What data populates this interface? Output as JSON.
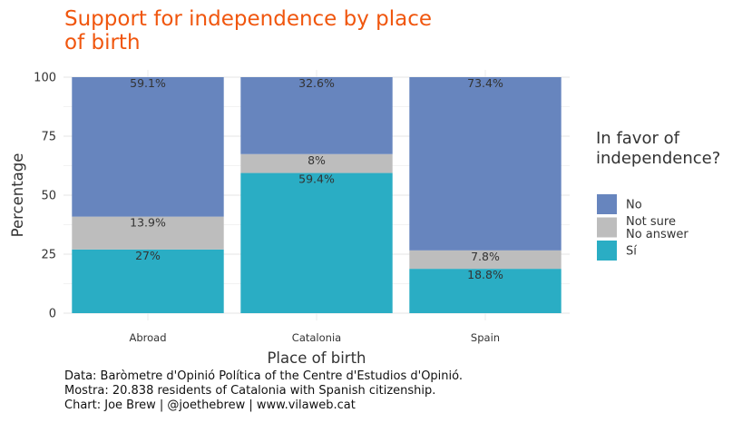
{
  "title": "Support for independence by place of birth",
  "chart_data": {
    "type": "bar",
    "stacked": true,
    "xlabel": "Place of birth",
    "ylabel": "Percentage",
    "ylim": [
      0,
      100
    ],
    "yticks": [
      0,
      25,
      50,
      75,
      100
    ],
    "categories": [
      "Abroad",
      "Catalonia",
      "Spain"
    ],
    "series": [
      {
        "name": "Sí",
        "color": "#2aadc4",
        "values": [
          27,
          59.4,
          18.8
        ],
        "labels": [
          "27%",
          "59.4%",
          "18.8%"
        ]
      },
      {
        "name": "Not sure\nNo answer",
        "color": "#bdbdbd",
        "values": [
          13.9,
          8,
          7.8
        ],
        "labels": [
          "13.9%",
          "8%",
          "7.8%"
        ]
      },
      {
        "name": "No",
        "color": "#6785be",
        "values": [
          59.1,
          32.6,
          73.4
        ],
        "labels": [
          "59.1%",
          "32.6%",
          "73.4%"
        ]
      }
    ],
    "legend": {
      "title": "In favor of independence?",
      "order": [
        "No",
        "Not sure\nNo answer",
        "Sí"
      ],
      "position": "right"
    },
    "grid": true
  },
  "caption": {
    "line1": "Data: Baròmetre d'Opinió Política of the Centre d'Estudios d'Opinió.",
    "line2": "Mostra: 20.838 residents of Catalonia with Spanish citizenship.",
    "line3": "Chart: Joe Brew | @joethebrew | www.vilaweb.cat"
  }
}
